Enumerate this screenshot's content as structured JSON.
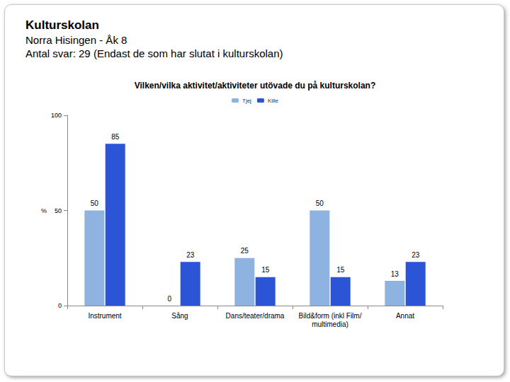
{
  "header": {
    "title": "Kulturskolan",
    "subtitle": "Norra Hisingen - Åk 8",
    "note": "Antal svar: 29 (Endast de som har slutat i kulturskolan)"
  },
  "chart_data": {
    "type": "bar",
    "title": "Vilken/vilka aktivitet/aktiviteter utövade du på kulturskolan?",
    "y_label": "%",
    "categories": [
      "Instrument",
      "Sång",
      "Dans/teater/drama",
      "Bild&form (inkl Film/multimedia)",
      "Annat"
    ],
    "series": [
      {
        "name": "Tjej",
        "color": "#8fb3e0",
        "values": [
          50,
          0,
          25,
          50,
          13
        ]
      },
      {
        "name": "Kille",
        "color": "#2b55d6",
        "values": [
          85,
          23,
          15,
          15,
          23
        ]
      }
    ],
    "ylim": [
      0,
      100
    ],
    "yticks": [
      0,
      50,
      100
    ],
    "grid": false,
    "legend": "top",
    "data_labels": true
  }
}
